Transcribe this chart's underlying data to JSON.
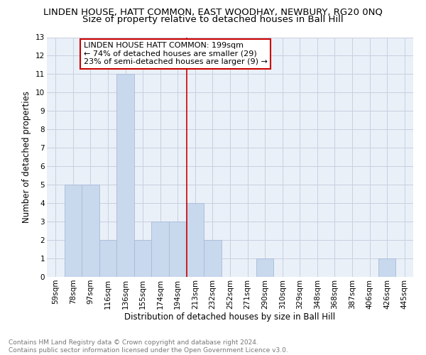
{
  "title": "LINDEN HOUSE, HATT COMMON, EAST WOODHAY, NEWBURY, RG20 0NQ",
  "subtitle": "Size of property relative to detached houses in Ball Hill",
  "xlabel": "Distribution of detached houses by size in Ball Hill",
  "ylabel": "Number of detached properties",
  "bar_labels": [
    "59sqm",
    "78sqm",
    "97sqm",
    "116sqm",
    "136sqm",
    "155sqm",
    "174sqm",
    "194sqm",
    "213sqm",
    "232sqm",
    "252sqm",
    "271sqm",
    "290sqm",
    "310sqm",
    "329sqm",
    "348sqm",
    "368sqm",
    "387sqm",
    "406sqm",
    "426sqm",
    "445sqm"
  ],
  "bar_values": [
    0,
    5,
    5,
    2,
    11,
    2,
    3,
    3,
    4,
    2,
    0,
    0,
    1,
    0,
    0,
    0,
    0,
    0,
    0,
    1,
    0
  ],
  "bar_color": "#c8d8ed",
  "bar_edgecolor": "#a8bcd8",
  "vline_x": 7.5,
  "vline_color": "#cc0000",
  "annotation_text": "LINDEN HOUSE HATT COMMON: 199sqm\n← 74% of detached houses are smaller (29)\n23% of semi-detached houses are larger (9) →",
  "annotation_box_edgecolor": "#cc0000",
  "annotation_box_facecolor": "#ffffff",
  "ylim": [
    0,
    13
  ],
  "yticks": [
    0,
    1,
    2,
    3,
    4,
    5,
    6,
    7,
    8,
    9,
    10,
    11,
    12,
    13
  ],
  "grid_color": "#c8d0e0",
  "bg_color": "#eaf0f8",
  "footer_text": "Contains HM Land Registry data © Crown copyright and database right 2024.\nContains public sector information licensed under the Open Government Licence v3.0.",
  "title_fontsize": 9.5,
  "subtitle_fontsize": 9.5,
  "axis_label_fontsize": 8.5,
  "tick_fontsize": 7.5,
  "annotation_fontsize": 8,
  "footer_fontsize": 6.5
}
